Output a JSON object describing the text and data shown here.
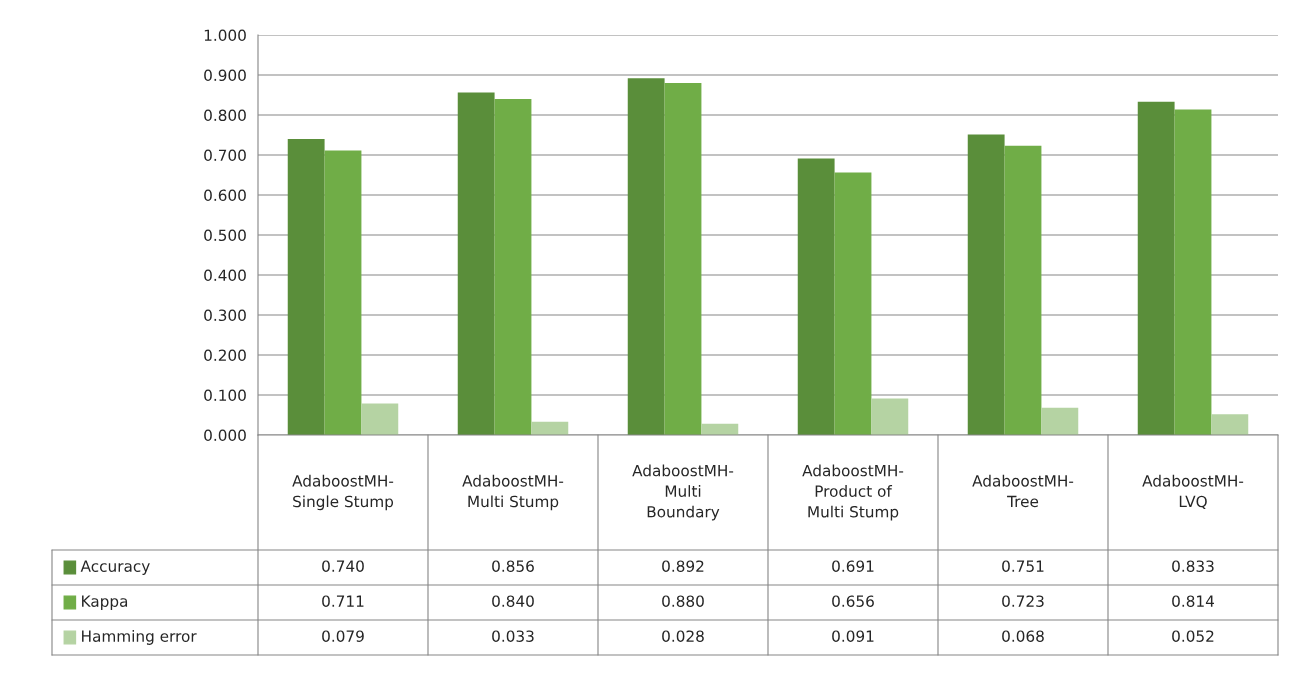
{
  "chart_data": {
    "type": "bar",
    "categories": [
      "AdaboostMH-\nSingle Stump",
      "AdaboostMH-\nMulti Stump",
      "AdaboostMH-\nMulti\nBoundary",
      "AdaboostMH-\nProduct of\nMulti Stump",
      "AdaboostMH-\nTree",
      "AdaboostMH-\nLVQ"
    ],
    "series": [
      {
        "name": "Accuracy",
        "color": "#5a8e3a",
        "values": [
          0.74,
          0.856,
          0.892,
          0.691,
          0.751,
          0.833
        ],
        "value_labels": [
          "0.740",
          "0.856",
          "0.892",
          "0.691",
          "0.751",
          "0.833"
        ]
      },
      {
        "name": "Kappa",
        "color": "#70ad47",
        "values": [
          0.711,
          0.84,
          0.88,
          0.656,
          0.723,
          0.814
        ],
        "value_labels": [
          "0.711",
          "0.840",
          "0.880",
          "0.656",
          "0.723",
          "0.814"
        ]
      },
      {
        "name": "Hamming error",
        "color": "#b5d3a3",
        "values": [
          0.079,
          0.033,
          0.028,
          0.091,
          0.068,
          0.052
        ],
        "value_labels": [
          "0.079",
          "0.033",
          "0.028",
          "0.091",
          "0.068",
          "0.052"
        ]
      }
    ],
    "ylim": [
      0,
      1
    ],
    "yticks": [
      {
        "value": 0,
        "label": "0.000"
      },
      {
        "value": 0.1,
        "label": "0.100"
      },
      {
        "value": 0.2,
        "label": "0.200"
      },
      {
        "value": 0.3,
        "label": "0.300"
      },
      {
        "value": 0.4,
        "label": "0.400"
      },
      {
        "value": 0.5,
        "label": "0.500"
      },
      {
        "value": 0.6,
        "label": "0.600"
      },
      {
        "value": 0.7,
        "label": "0.700"
      },
      {
        "value": 0.8,
        "label": "0.800"
      },
      {
        "value": 0.9,
        "label": "0.900"
      },
      {
        "value": 1,
        "label": "1.000"
      }
    ],
    "grid": "y",
    "legend": "bottom"
  }
}
